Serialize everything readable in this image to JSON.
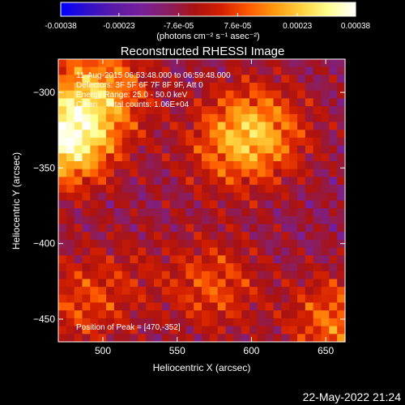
{
  "chart_data": {
    "type": "heatmap",
    "title": "Reconstructed RHESSI Image",
    "xlabel": "Heliocentric X (arcsec)",
    "ylabel": "Heliocentric Y (arcsec)",
    "xlim": [
      470,
      663
    ],
    "ylim": [
      -465,
      -278
    ],
    "x_ticks": [
      500,
      550,
      600,
      650
    ],
    "y_ticks": [
      -300,
      -350,
      -400,
      -450
    ],
    "colorbar": {
      "min": -0.00038,
      "max": 0.00038,
      "tick_values": [
        -0.00038,
        -0.00023,
        -7.6e-05,
        7.6e-05,
        0.00023,
        0.00038
      ],
      "tick_labels": [
        "-0.00038",
        "-0.00023",
        "-7.6e-05",
        "7.6e-05",
        "0.00023",
        "0.00038"
      ],
      "unit_label": "(photons cm⁻² s⁻¹ asec⁻²)",
      "colors": [
        "#0000ff",
        "#3010c8",
        "#5a1aa8",
        "#781f9a",
        "#8a1e62",
        "#aa1212",
        "#d42000",
        "#ff5a00",
        "#ff9a10",
        "#ffd240",
        "#ffff90",
        "#ffffff"
      ]
    },
    "annotations": [
      "11-Aug-2015 06:53:48.000 to 06:59:48.000",
      "Detectors: 3F 5F 6F 7F 8F 9F, Att 0",
      "Energy Range: 25.0 - 50.0 keV",
      "Clean    Total counts: 1.06E+04"
    ],
    "peak_label": "Position of Peak = [470,-352]",
    "peak": {
      "x": 470,
      "y": -352
    },
    "sources": [
      {
        "x": 476,
        "y": -330,
        "intensity": 1.0
      },
      {
        "x": 505,
        "y": -300,
        "intensity": 0.35
      },
      {
        "x": 490,
        "y": -290,
        "intensity": 0.25
      },
      {
        "x": 600,
        "y": -325,
        "intensity": 0.55
      },
      {
        "x": 580,
        "y": -340,
        "intensity": 0.25
      },
      {
        "x": 620,
        "y": -330,
        "intensity": 0.15
      },
      {
        "x": 485,
        "y": -440,
        "intensity": 0.35
      },
      {
        "x": 575,
        "y": -428,
        "intensity": 0.4
      },
      {
        "x": 656,
        "y": -452,
        "intensity": 0.5
      },
      {
        "x": 520,
        "y": -420,
        "intensity": 0.15
      }
    ]
  },
  "timestamp": "22-May-2022 21:24"
}
